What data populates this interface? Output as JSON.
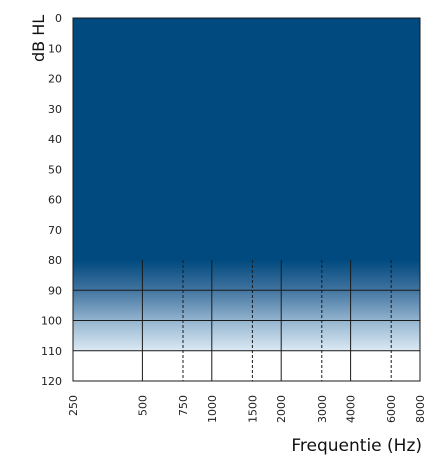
{
  "chart_data": {
    "type": "area",
    "title": "",
    "xlabel": "Frequentie (Hz)",
    "ylabel": "dB HL",
    "x_scale": "log",
    "y_inverted": true,
    "ylim": [
      0,
      120
    ],
    "y_ticks": [
      "0",
      "10",
      "20",
      "30",
      "40",
      "50",
      "60",
      "70",
      "80",
      "90",
      "100",
      "110",
      "120"
    ],
    "x_ticks": [
      "250",
      "500",
      "750",
      "1000",
      "1500",
      "2000",
      "3000",
      "4000",
      "6000",
      "8000"
    ],
    "x_tick_values": [
      250,
      500,
      750,
      1000,
      1500,
      2000,
      3000,
      4000,
      6000,
      8000
    ],
    "dashed_x_ticks": [
      750,
      1500,
      3000,
      6000
    ],
    "y_gridlines": [
      90,
      100,
      110
    ],
    "filled_region": {
      "x_range": [
        250,
        8000
      ],
      "y_solid_range": [
        0,
        80
      ],
      "y_gradient_range": [
        80,
        110
      ],
      "color": "#004a7f",
      "fade_to": "#dbe9f3"
    },
    "grid": true
  }
}
